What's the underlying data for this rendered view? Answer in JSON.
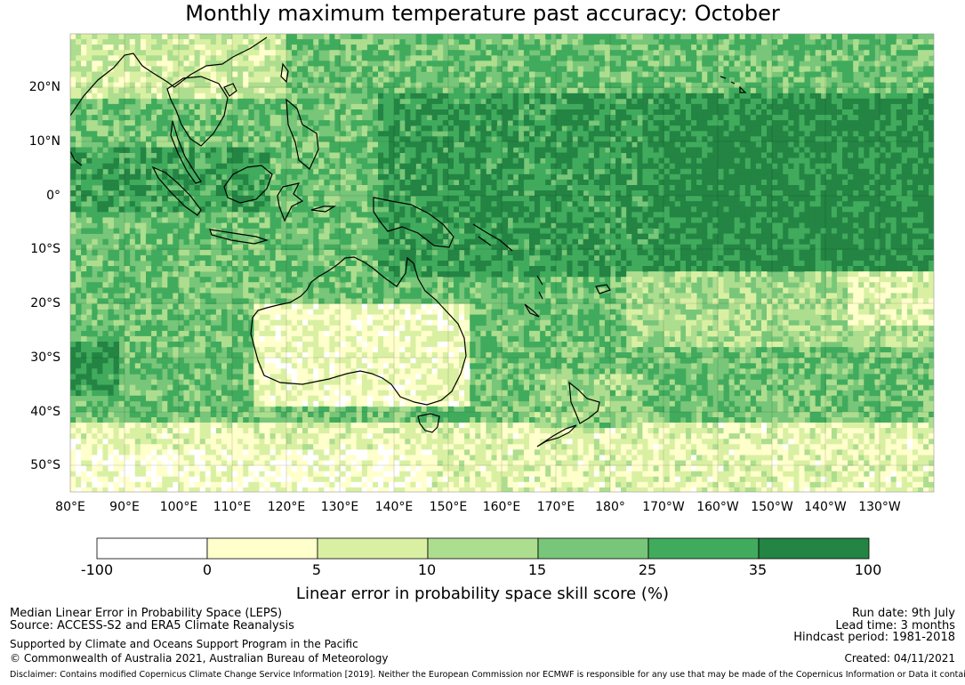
{
  "title": "Monthly maximum temperature past accuracy: October",
  "map": {
    "lat_labels": [
      "20°N",
      "10°N",
      "0°",
      "10°S",
      "20°S",
      "30°S",
      "40°S",
      "50°S"
    ],
    "lon_labels": [
      "80°E",
      "90°E",
      "100°E",
      "110°E",
      "120°E",
      "130°E",
      "140°E",
      "150°E",
      "160°E",
      "170°E",
      "180°",
      "170°W",
      "160°W",
      "150°W",
      "140°W",
      "130°W"
    ]
  },
  "colorbar": {
    "ticks": [
      "-100",
      "0",
      "5",
      "10",
      "15",
      "25",
      "35",
      "100"
    ],
    "colors": [
      "#ffffff",
      "#ffffcc",
      "#d9f0a3",
      "#addd8e",
      "#78c679",
      "#41ab5d",
      "#238443"
    ],
    "label": "Linear error in probability space skill score (%)"
  },
  "footer": {
    "left1": "Median Linear Error in Probability Space (LEPS)",
    "left2": "Source: ACCESS-S2 and ERA5 Climate Reanalysis",
    "left3": "Supported by Climate and Oceans Support Program in the Pacific",
    "left4": "© Commonwealth of Australia 2021, Australian Bureau of Meteorology",
    "right1": "Run date: 9th July",
    "right2": "Lead time: 3 months",
    "right3": "Hindcast period: 1981-2018",
    "right4": "Created: 04/11/2021",
    "disclaimer": "Disclaimer: Contains modified Copernicus Climate Change Service Information [2019]. Neither the European Commission nor ECMWF is responsible for any use that may be made of the Copernicus Information or Data it contains."
  }
}
